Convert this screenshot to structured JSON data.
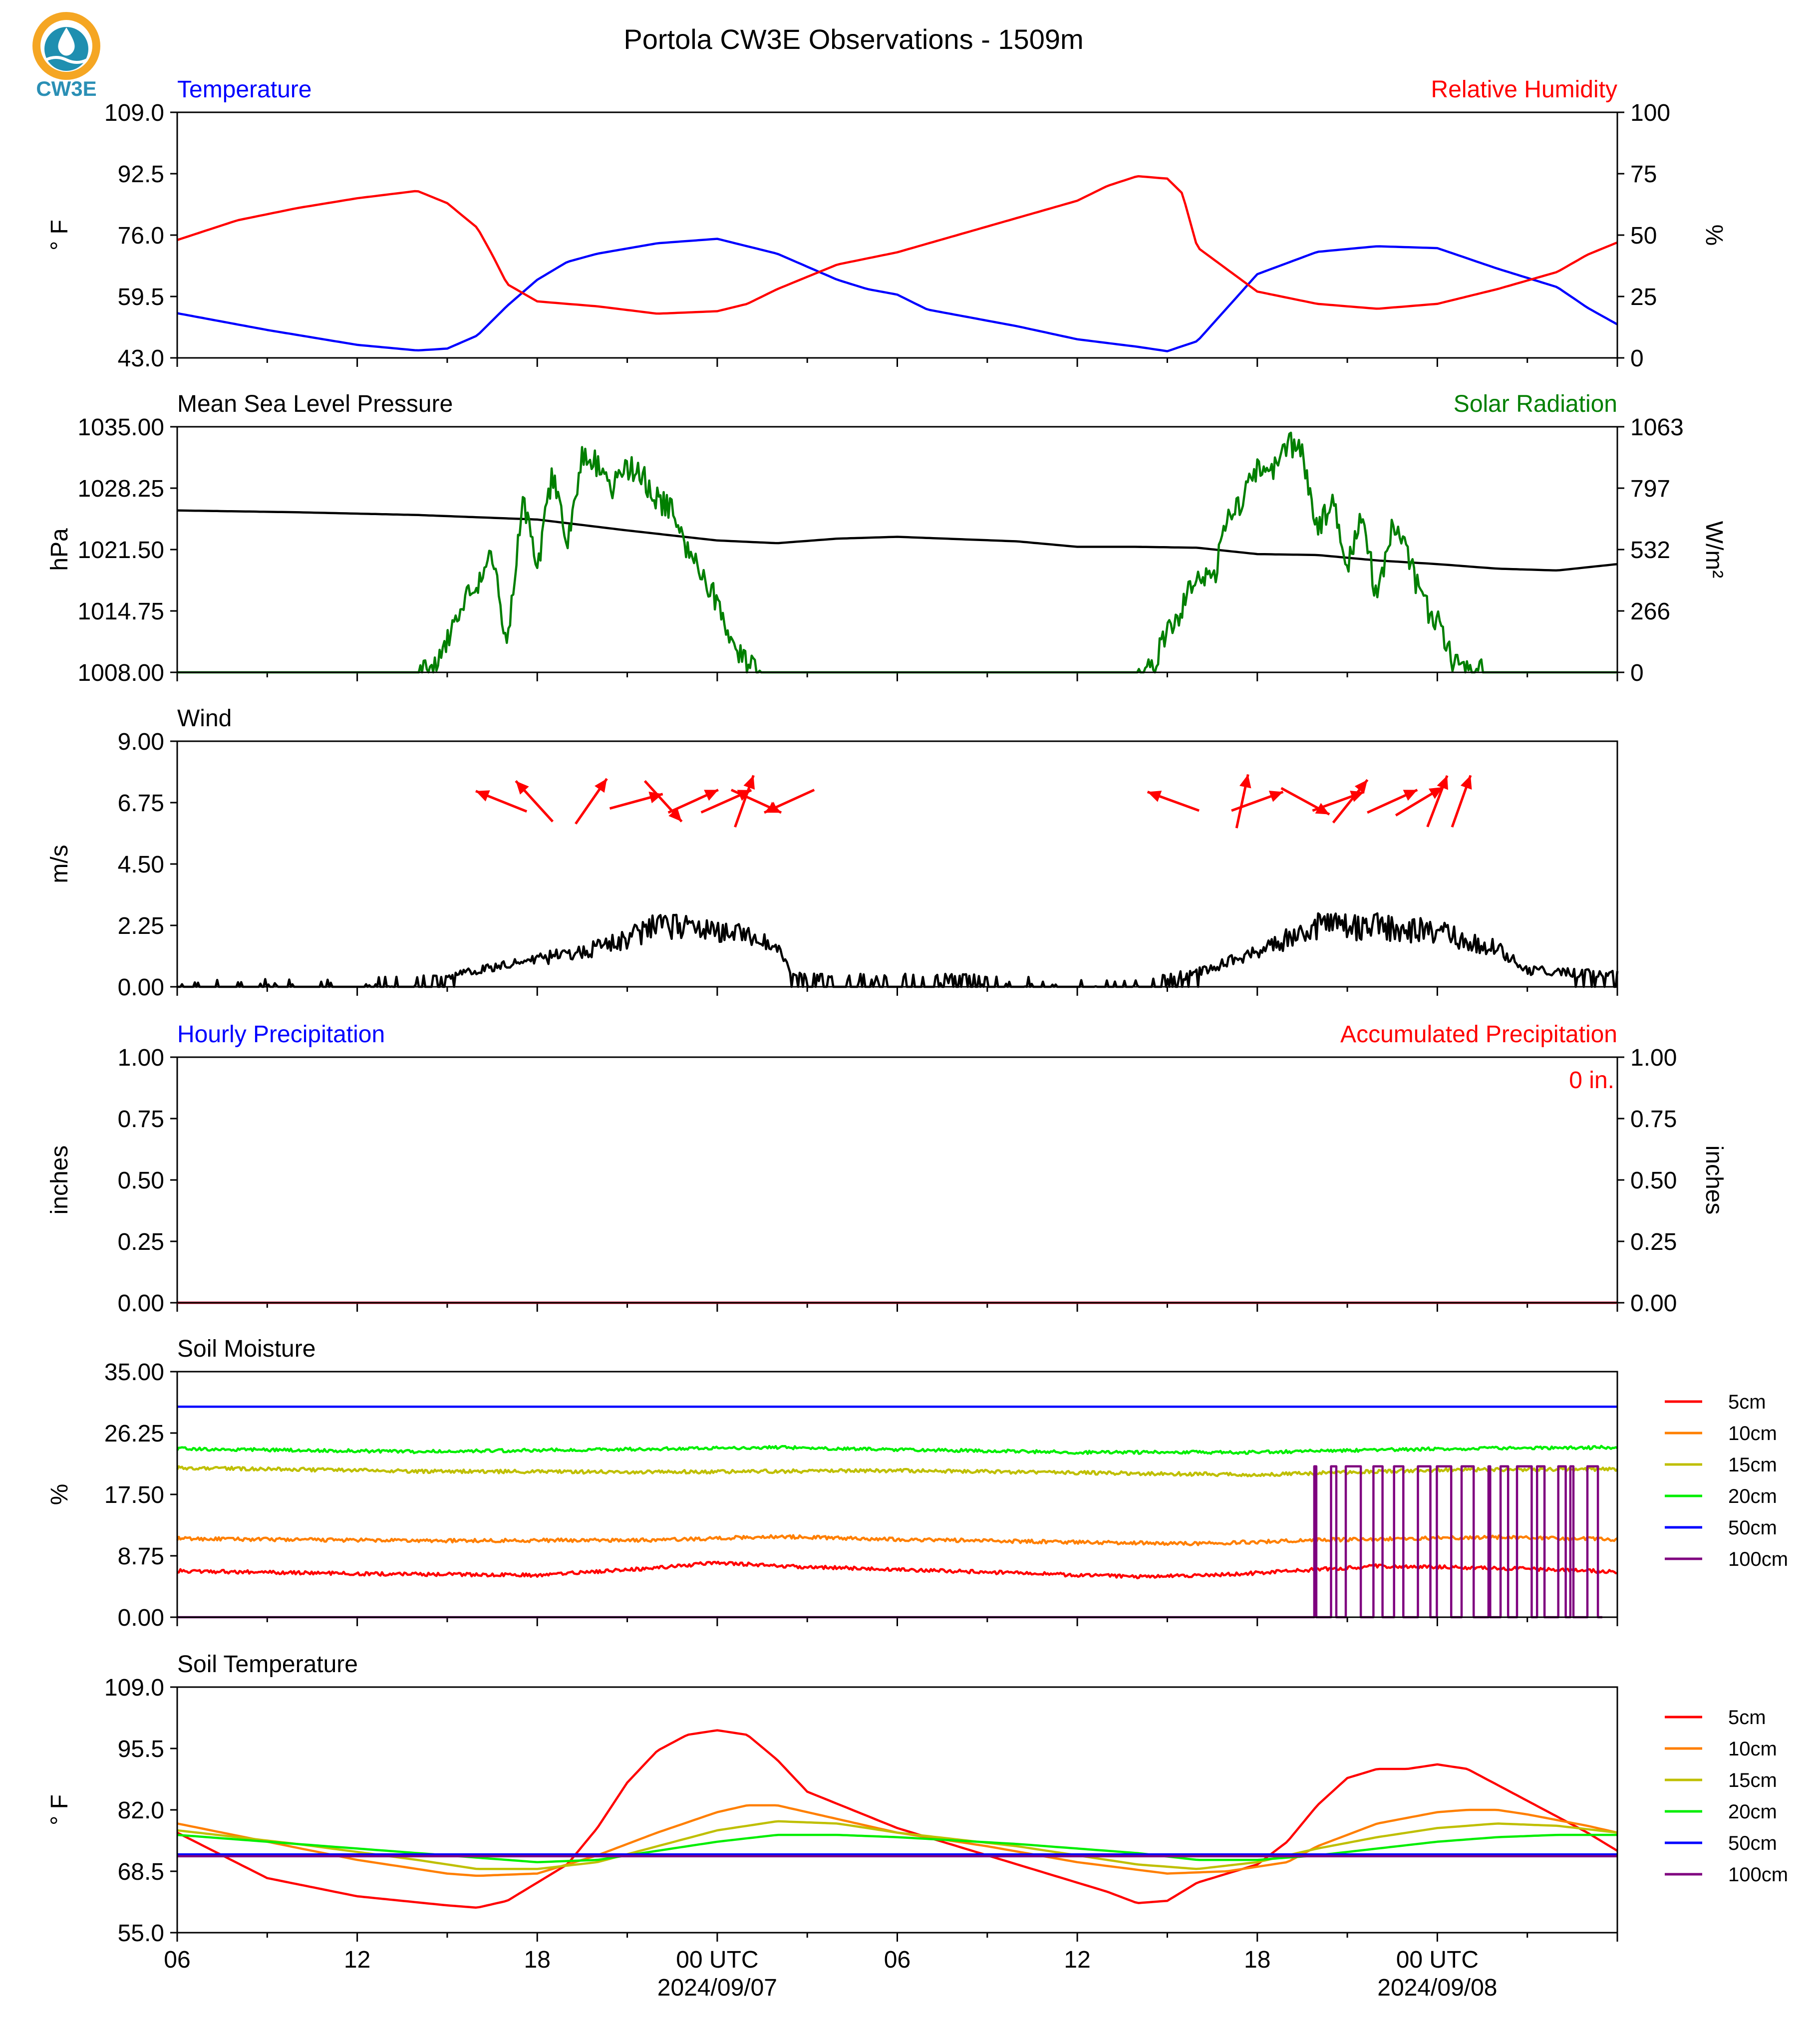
{
  "page": {
    "title": "Portola CW3E Observations - 1509m",
    "logo_text": "CW3E"
  },
  "colors": {
    "temperature": "#0000ff",
    "humidity": "#ff0000",
    "pressure": "#000000",
    "solar": "#007f00",
    "wind": "#000000",
    "wind_arrow": "#ff0000",
    "hourly_precip": "#0000ff",
    "accum_precip": "#ff0000",
    "depth_5cm": "#ff0000",
    "depth_10cm": "#ff7f00",
    "depth_15cm": "#bfbf00",
    "depth_20cm": "#00ee00",
    "depth_50cm": "#0000ff",
    "depth_100cm": "#7f007f"
  },
  "time_axis": {
    "start": "2024-09-06T06:00Z",
    "end": "2024-09-08T06:00Z",
    "major_ticks": [
      {
        "hour": 0,
        "label": "06"
      },
      {
        "hour": 6,
        "label": "12"
      },
      {
        "hour": 12,
        "label": "18"
      },
      {
        "hour": 18,
        "label": "00 UTC",
        "sublabel": "2024/09/07"
      },
      {
        "hour": 24,
        "label": "06"
      },
      {
        "hour": 30,
        "label": "12"
      },
      {
        "hour": 36,
        "label": "18"
      },
      {
        "hour": 42,
        "label": "00 UTC",
        "sublabel": "2024/09/08"
      }
    ]
  },
  "chart_data": [
    {
      "id": "temp_rh",
      "type": "line",
      "title_left": "Temperature",
      "title_right": "Relative Humidity",
      "ylabel_left": "° F",
      "ylabel_right": "%",
      "ylim_left": [
        43.0,
        109.0
      ],
      "ylim_right": [
        0,
        100
      ],
      "yticks_left": [
        "43.0",
        "59.5",
        "76.0",
        "92.5",
        "109.0"
      ],
      "yticks_right": [
        "0",
        "25",
        "50",
        "75",
        "100"
      ],
      "series": [
        {
          "name": "Temperature",
          "axis": "left",
          "color_key": "temperature",
          "x_hours": [
            0,
            3,
            6,
            8,
            9,
            10,
            11,
            12,
            13,
            14,
            16,
            18,
            20,
            22,
            23,
            24,
            25,
            26,
            28,
            30,
            32,
            33,
            34,
            35,
            36,
            38,
            40,
            42,
            44,
            46,
            47,
            48
          ],
          "y": [
            55,
            50.5,
            46.5,
            45,
            45.5,
            49,
            57,
            64,
            68.8,
            71,
            73.8,
            75,
            71,
            64,
            61.5,
            60,
            56,
            54.5,
            51.5,
            48,
            46,
            44.8,
            47.5,
            56.5,
            65.5,
            71.5,
            73,
            72.5,
            67,
            62,
            56.5,
            52
          ]
        },
        {
          "name": "Relative Humidity",
          "axis": "right",
          "color_key": "humidity",
          "x_hours": [
            0,
            2,
            4,
            6,
            8,
            9,
            10,
            10.5,
            11,
            12,
            14,
            16,
            18,
            19,
            20,
            21,
            22,
            24,
            26,
            28,
            30,
            31,
            32,
            33,
            33.5,
            34,
            36,
            38,
            40,
            42,
            44,
            46,
            47,
            48
          ],
          "y": [
            48,
            56,
            61,
            65,
            68,
            63,
            53,
            42,
            30,
            23,
            21,
            18,
            19,
            22,
            28,
            33,
            38,
            43,
            50,
            57,
            64,
            70,
            74,
            73,
            67,
            45,
            27,
            22,
            20,
            22,
            28,
            35,
            42,
            47
          ]
        }
      ]
    },
    {
      "id": "mslp_solar",
      "type": "line",
      "title_left": "Mean Sea Level Pressure",
      "title_right": "Solar Radiation",
      "ylabel_left": "hPa",
      "ylabel_right": "W/m²",
      "ylim_left": [
        1008.0,
        1035.0
      ],
      "ylim_right": [
        0,
        1063
      ],
      "yticks_left": [
        "1008.00",
        "1014.75",
        "1021.50",
        "1028.25",
        "1035.00"
      ],
      "yticks_right": [
        "0",
        "266",
        "532",
        "797",
        "1063"
      ],
      "series": [
        {
          "name": "Mean Sea Level Pressure",
          "axis": "left",
          "color_key": "pressure",
          "x_hours": [
            0,
            4,
            8,
            12,
            15,
            18,
            20,
            22,
            24,
            28,
            30,
            32,
            34,
            36,
            38,
            40,
            42,
            44,
            46,
            48
          ],
          "y": [
            1025.8,
            1025.6,
            1025.3,
            1024.8,
            1023.6,
            1022.5,
            1022.2,
            1022.7,
            1022.9,
            1022.4,
            1021.8,
            1021.8,
            1021.7,
            1021.0,
            1020.9,
            1020.3,
            1019.9,
            1019.4,
            1019.2,
            1019.9
          ]
        },
        {
          "name": "Solar Radiation",
          "axis": "right",
          "color_key": "solar",
          "x_hours": [
            0,
            8,
            8.5,
            9,
            9.5,
            10,
            10.5,
            11,
            11.5,
            12,
            12.5,
            13,
            13.5,
            14,
            14.5,
            15,
            15.5,
            16,
            16.5,
            17,
            17.5,
            18,
            18.5,
            19,
            19.5,
            20,
            20.5,
            32,
            32.5,
            33,
            33.5,
            34,
            34.5,
            35,
            35.5,
            36,
            36.5,
            37,
            37.5,
            38,
            38.5,
            39,
            39.5,
            40,
            40.5,
            41,
            41.5,
            42,
            42.5,
            43,
            43.5,
            44,
            44.5,
            48
          ],
          "y": [
            0,
            0,
            10,
            150,
            300,
            380,
            500,
            120,
            750,
            450,
            850,
            550,
            950,
            900,
            800,
            890,
            850,
            750,
            700,
            520,
            430,
            300,
            150,
            30,
            0,
            0,
            0,
            0,
            20,
            180,
            280,
            450,
            380,
            650,
            750,
            880,
            850,
            1000,
            950,
            600,
            750,
            450,
            700,
            300,
            620,
            520,
            300,
            220,
            60,
            10,
            0,
            0,
            0,
            0
          ],
          "noise": 110
        }
      ]
    },
    {
      "id": "wind",
      "type": "line",
      "title_left": "Wind",
      "ylabel_left": "m/s",
      "ylim_left": [
        0.0,
        9.0
      ],
      "yticks_left": [
        "0.00",
        "2.25",
        "4.50",
        "6.75",
        "9.00"
      ],
      "series": [
        {
          "name": "Wind speed",
          "axis": "left",
          "color_key": "wind",
          "x_hours": [
            0,
            8,
            10,
            12,
            14,
            16,
            18,
            20,
            20.5,
            22,
            26,
            30,
            32,
            34,
            36,
            38,
            40,
            42,
            44,
            45,
            48
          ],
          "y": [
            0.1,
            0.2,
            0.6,
            1.0,
            1.4,
            2.2,
            2.1,
            1.5,
            0.4,
            0.3,
            0.3,
            0.1,
            0.1,
            0.5,
            1.3,
            2.2,
            2.2,
            2.0,
            1.4,
            0.6,
            0.4
          ],
          "noise": 0.9
        }
      ],
      "wind_barbs": [
        {
          "x": 10.8,
          "u": -1.0,
          "v": 0.4
        },
        {
          "x": 11.9,
          "u": -1.0,
          "v": 1.1
        },
        {
          "x": 13.8,
          "u": 0.9,
          "v": 1.3
        },
        {
          "x": 15.3,
          "u": 1.1,
          "v": 0.3
        },
        {
          "x": 16.2,
          "u": 1.0,
          "v": -1.1
        },
        {
          "x": 17.2,
          "u": 1.1,
          "v": 0.5
        },
        {
          "x": 18.3,
          "u": 0.9,
          "v": 0.4
        },
        {
          "x": 18.9,
          "u": 0.5,
          "v": 1.4
        },
        {
          "x": 19.3,
          "u": 1.1,
          "v": -0.5
        },
        {
          "x": 20.4,
          "u": -1.1,
          "v": -0.5
        },
        {
          "x": 33.2,
          "u": -1.1,
          "v": 0.4
        },
        {
          "x": 35.5,
          "u": 0.3,
          "v": 1.4
        },
        {
          "x": 36.0,
          "u": 1.1,
          "v": 0.4
        },
        {
          "x": 37.6,
          "u": 1.1,
          "v": -0.6
        },
        {
          "x": 38.7,
          "u": 1.1,
          "v": 0.4
        },
        {
          "x": 39.1,
          "u": 0.8,
          "v": 1.0
        },
        {
          "x": 40.5,
          "u": 1.1,
          "v": 0.5
        },
        {
          "x": 41.4,
          "u": 1.0,
          "v": 0.6
        },
        {
          "x": 42.0,
          "u": 0.5,
          "v": 1.3
        },
        {
          "x": 42.8,
          "u": 0.5,
          "v": 1.4
        }
      ]
    },
    {
      "id": "precip",
      "type": "line",
      "title_left": "Hourly Precipitation",
      "title_right": "Accumulated Precipitation",
      "ylabel_left": "inches",
      "ylabel_right": "inches",
      "ylim_left": [
        0.0,
        1.0
      ],
      "ylim_right": [
        0.0,
        1.0
      ],
      "yticks_left": [
        "0.00",
        "0.25",
        "0.50",
        "0.75",
        "1.00"
      ],
      "yticks_right": [
        "0.00",
        "0.25",
        "0.50",
        "0.75",
        "1.00"
      ],
      "annotation": "0 in.",
      "series": [
        {
          "name": "Hourly Precipitation",
          "axis": "left",
          "color_key": "hourly_precip",
          "x_hours": [
            0,
            48
          ],
          "y": [
            0,
            0
          ]
        },
        {
          "name": "Accumulated Precipitation",
          "axis": "right",
          "color_key": "accum_precip",
          "x_hours": [
            0,
            48
          ],
          "y": [
            0,
            0
          ]
        }
      ]
    },
    {
      "id": "soil_moisture",
      "type": "line",
      "title_left": "Soil Moisture",
      "ylabel_left": "%",
      "ylim_left": [
        0.0,
        35.0
      ],
      "yticks_left": [
        "0.00",
        "8.75",
        "17.50",
        "26.25",
        "35.00"
      ],
      "legend": [
        "5cm",
        "10cm",
        "15cm",
        "20cm",
        "50cm",
        "100cm"
      ],
      "series": [
        {
          "name": "5cm",
          "axis": "left",
          "color_key": "depth_5cm",
          "x_hours": [
            0,
            6,
            12,
            16,
            18,
            20,
            24,
            28,
            30,
            32,
            34,
            36,
            40,
            44,
            48
          ],
          "y": [
            6.6,
            6.2,
            6.0,
            7.0,
            7.8,
            7.3,
            6.8,
            6.3,
            6.0,
            5.8,
            5.9,
            6.3,
            7.3,
            7.0,
            6.5
          ],
          "noise": 0.5
        },
        {
          "name": "10cm",
          "axis": "left",
          "color_key": "depth_10cm",
          "x_hours": [
            0,
            8,
            16,
            20,
            24,
            30,
            34,
            38,
            44,
            48
          ],
          "y": [
            11.2,
            10.9,
            11.0,
            11.5,
            11.1,
            10.7,
            10.5,
            11.0,
            11.4,
            11.1
          ],
          "noise": 0.5
        },
        {
          "name": "15cm",
          "axis": "left",
          "color_key": "depth_15cm",
          "x_hours": [
            0,
            8,
            16,
            24,
            32,
            36,
            42,
            48
          ],
          "y": [
            21.3,
            20.8,
            20.7,
            20.9,
            20.5,
            20.3,
            21.0,
            21.1
          ],
          "noise": 0.5
        },
        {
          "name": "20cm",
          "axis": "left",
          "color_key": "depth_20cm",
          "x_hours": [
            0,
            8,
            14,
            20,
            24,
            30,
            36,
            42,
            48
          ],
          "y": [
            24.0,
            23.6,
            23.9,
            24.2,
            23.9,
            23.5,
            23.5,
            24.0,
            24.2
          ],
          "noise": 0.45
        },
        {
          "name": "50cm",
          "axis": "left",
          "color_key": "depth_50cm",
          "x_hours": [
            0,
            48
          ],
          "y": [
            30.0,
            30.0
          ]
        },
        {
          "name": "100cm",
          "axis": "left",
          "color_key": "depth_100cm",
          "x_hours": [
            0,
            37.9
          ],
          "y": [
            0,
            0
          ],
          "toggle_range": [
            37.9,
            47.5
          ],
          "toggle_values": [
            0,
            21.5
          ]
        }
      ]
    },
    {
      "id": "soil_temp",
      "type": "line",
      "title_left": "Soil Temperature",
      "ylabel_left": "° F",
      "ylim_left": [
        55.0,
        109.0
      ],
      "yticks_left": [
        "55.0",
        "68.5",
        "82.0",
        "95.5",
        "109.0"
      ],
      "legend": [
        "5cm",
        "10cm",
        "15cm",
        "20cm",
        "50cm",
        "100cm"
      ],
      "series": [
        {
          "name": "5cm",
          "axis": "left",
          "color_key": "depth_5cm",
          "x_hours": [
            0,
            3,
            6,
            9,
            10,
            11,
            12,
            13,
            14,
            15,
            16,
            17,
            18,
            19,
            20,
            21,
            24,
            28,
            31,
            32,
            33,
            34,
            36,
            37,
            38,
            39,
            40,
            41,
            42,
            43,
            45,
            47,
            48
          ],
          "y": [
            77,
            67,
            63,
            61,
            60.5,
            62,
            66,
            70,
            78,
            88,
            95,
            98.5,
            99.5,
            98.5,
            93,
            86,
            78,
            70,
            64,
            61.5,
            62,
            66,
            70,
            75,
            83,
            89,
            91,
            91,
            92,
            91,
            84,
            77,
            73
          ]
        },
        {
          "name": "10cm",
          "axis": "left",
          "color_key": "depth_10cm",
          "x_hours": [
            0,
            3,
            6,
            9,
            10,
            12,
            14,
            16,
            18,
            19,
            20,
            22,
            24,
            27,
            30,
            33,
            35,
            37,
            38,
            40,
            42,
            43,
            44,
            45,
            47,
            48
          ],
          "y": [
            79,
            75,
            71,
            68,
            67.5,
            68,
            72,
            77,
            81.5,
            83,
            83,
            80,
            77,
            74,
            70.5,
            68,
            68.5,
            70.5,
            74,
            79,
            81.5,
            82,
            82,
            81,
            78.5,
            77
          ]
        },
        {
          "name": "15cm",
          "axis": "left",
          "color_key": "depth_15cm",
          "x_hours": [
            0,
            4,
            8,
            10,
            12,
            14,
            16,
            18,
            20,
            22,
            24,
            28,
            32,
            34,
            36,
            38,
            40,
            42,
            44,
            46,
            48
          ],
          "y": [
            77.5,
            74.5,
            71,
            69,
            69,
            70.5,
            74,
            77.5,
            79.5,
            79,
            77,
            74,
            70,
            69,
            70.5,
            73.5,
            76,
            78,
            79,
            78.5,
            77
          ]
        },
        {
          "name": "20cm",
          "axis": "left",
          "color_key": "depth_20cm",
          "x_hours": [
            0,
            4,
            8,
            12,
            14,
            16,
            18,
            20,
            22,
            24,
            28,
            32,
            34,
            36,
            38,
            40,
            42,
            44,
            46,
            48
          ],
          "y": [
            76.5,
            74.5,
            72.5,
            70.5,
            71,
            73,
            75,
            76.5,
            76.5,
            76,
            74.5,
            72.5,
            71,
            71,
            72,
            73.5,
            75,
            76,
            76.5,
            76.5
          ]
        },
        {
          "name": "50cm",
          "axis": "left",
          "color_key": "depth_50cm",
          "x_hours": [
            0,
            48
          ],
          "y": [
            72.2,
            72.2
          ]
        },
        {
          "name": "100cm",
          "axis": "left",
          "color_key": "depth_100cm",
          "x_hours": [
            0,
            48
          ],
          "y": [
            71.8,
            71.8
          ]
        }
      ]
    }
  ]
}
